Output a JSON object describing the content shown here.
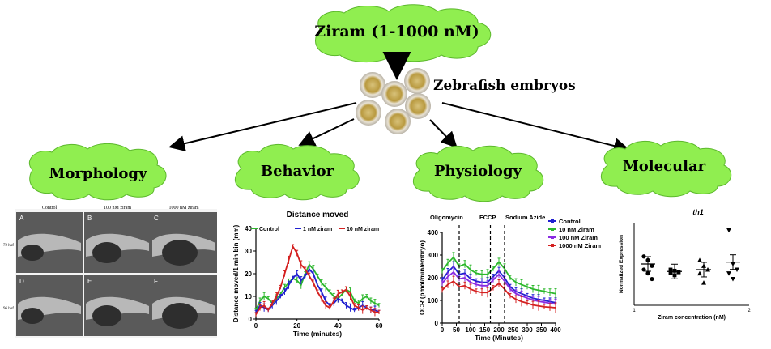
{
  "diagram": {
    "title": "Ziram (1-1000 nM)",
    "subject": "Zebrafish embryos",
    "branches": [
      "Morphology",
      "Behavior",
      "Physiology",
      "Molecular"
    ]
  },
  "morphology_panel": {
    "columns": [
      "Control",
      "100 nM ziram",
      "1000 nM ziram"
    ],
    "rows": [
      "72 hpf",
      "96 hpf"
    ],
    "letters": [
      "A",
      "B",
      "C",
      "D",
      "E",
      "F"
    ]
  },
  "behavior_panel": {
    "chart_data": {
      "type": "line",
      "title": "Distance moved",
      "xlabel": "Time (minutes)",
      "ylabel": "Distance moved/1 min bin (mm)",
      "xlim": [
        0,
        60
      ],
      "ylim": [
        0,
        40
      ],
      "xticks": [
        "0",
        "20",
        "40",
        "60"
      ],
      "yticks": [
        "0",
        "10",
        "20",
        "30",
        "40"
      ],
      "x": [
        0,
        2,
        4,
        6,
        8,
        10,
        12,
        14,
        16,
        18,
        20,
        22,
        24,
        26,
        28,
        30,
        32,
        34,
        36,
        38,
        40,
        42,
        44,
        46,
        48,
        50,
        52,
        54,
        56,
        58,
        60
      ],
      "series": [
        {
          "name": "Control",
          "color": "#2db82d",
          "values": [
            4,
            8,
            10,
            9,
            7,
            9,
            11,
            14,
            16,
            18,
            17,
            15,
            20,
            24,
            22,
            19,
            16,
            14,
            12,
            10,
            9,
            11,
            13,
            12,
            8,
            7,
            9,
            10,
            8,
            7,
            6
          ]
        },
        {
          "name": "1 nM ziram",
          "color": "#2020d0",
          "values": [
            3,
            6,
            5,
            4,
            6,
            8,
            10,
            12,
            15,
            18,
            20,
            17,
            19,
            22,
            20,
            15,
            12,
            8,
            6,
            7,
            9,
            8,
            6,
            5,
            4,
            5,
            6,
            5,
            4,
            4,
            3
          ]
        },
        {
          "name": "10 nM ziram",
          "color": "#d42020",
          "values": [
            2,
            5,
            6,
            4,
            7,
            10,
            14,
            20,
            26,
            32,
            29,
            24,
            22,
            19,
            16,
            12,
            9,
            6,
            5,
            8,
            11,
            12,
            13,
            10,
            6,
            5,
            4,
            5,
            4,
            3,
            3
          ]
        }
      ]
    }
  },
  "physiology_panel": {
    "chart_data": {
      "type": "line",
      "xlabel": "Time (Minutes)",
      "ylabel": "OCR (pmol/min/embryo)",
      "xlim": [
        0,
        400
      ],
      "ylim": [
        0,
        400
      ],
      "xticks": [
        "0",
        "50",
        "100",
        "150",
        "200",
        "250",
        "300",
        "350",
        "400"
      ],
      "yticks": [
        "0",
        "100",
        "200",
        "300",
        "400"
      ],
      "annotations": [
        "Oligomycin",
        "FCCP",
        "Sodium Azide"
      ],
      "annotation_x": [
        60,
        170,
        220
      ],
      "x": [
        0,
        20,
        40,
        60,
        80,
        100,
        120,
        140,
        160,
        180,
        200,
        220,
        240,
        260,
        280,
        300,
        320,
        340,
        360,
        380,
        400,
        420
      ],
      "series": [
        {
          "name": "Control",
          "color": "#2020d0",
          "values": [
            190,
            225,
            250,
            215,
            220,
            195,
            185,
            180,
            180,
            205,
            230,
            200,
            160,
            140,
            130,
            120,
            110,
            105,
            100,
            95,
            90,
            88
          ]
        },
        {
          "name": "10 nM Ziram",
          "color": "#2db82d",
          "values": [
            230,
            265,
            290,
            250,
            260,
            235,
            220,
            215,
            215,
            240,
            270,
            240,
            200,
            180,
            170,
            160,
            150,
            145,
            140,
            135,
            130,
            126
          ]
        },
        {
          "name": "100 nM Ziram",
          "color": "#8a2be2",
          "values": [
            175,
            205,
            225,
            195,
            200,
            180,
            170,
            165,
            165,
            190,
            215,
            185,
            150,
            130,
            120,
            110,
            102,
            96,
            92,
            88,
            84,
            80
          ]
        },
        {
          "name": "1000 nM Ziram",
          "color": "#d42020",
          "values": [
            145,
            170,
            185,
            160,
            165,
            150,
            140,
            135,
            135,
            155,
            175,
            150,
            120,
            105,
            95,
            88,
            80,
            76,
            72,
            70,
            68,
            66
          ]
        }
      ]
    }
  },
  "molecular_panel": {
    "chart_data": {
      "type": "scatter",
      "title": "th1",
      "xlabel": "Ziram concentration (nM)",
      "ylabel": "Normalized Expression",
      "xticks": [
        "1",
        "2"
      ],
      "groups": [
        {
          "marker": "circle",
          "mean": 1.1,
          "values": [
            1.3,
            1.2,
            1.05,
            0.95,
            0.85,
            0.7
          ]
        },
        {
          "marker": "square",
          "mean": 0.9,
          "values": [
            0.95,
            0.92,
            0.88,
            0.85,
            0.8
          ]
        },
        {
          "marker": "triangle-up",
          "mean": 0.95,
          "values": [
            1.2,
            1.05,
            0.95,
            0.85,
            0.6
          ]
        },
        {
          "marker": "triangle-down",
          "mean": 1.15,
          "values": [
            2.0,
            1.1,
            0.95,
            0.85,
            0.7
          ]
        }
      ]
    }
  }
}
